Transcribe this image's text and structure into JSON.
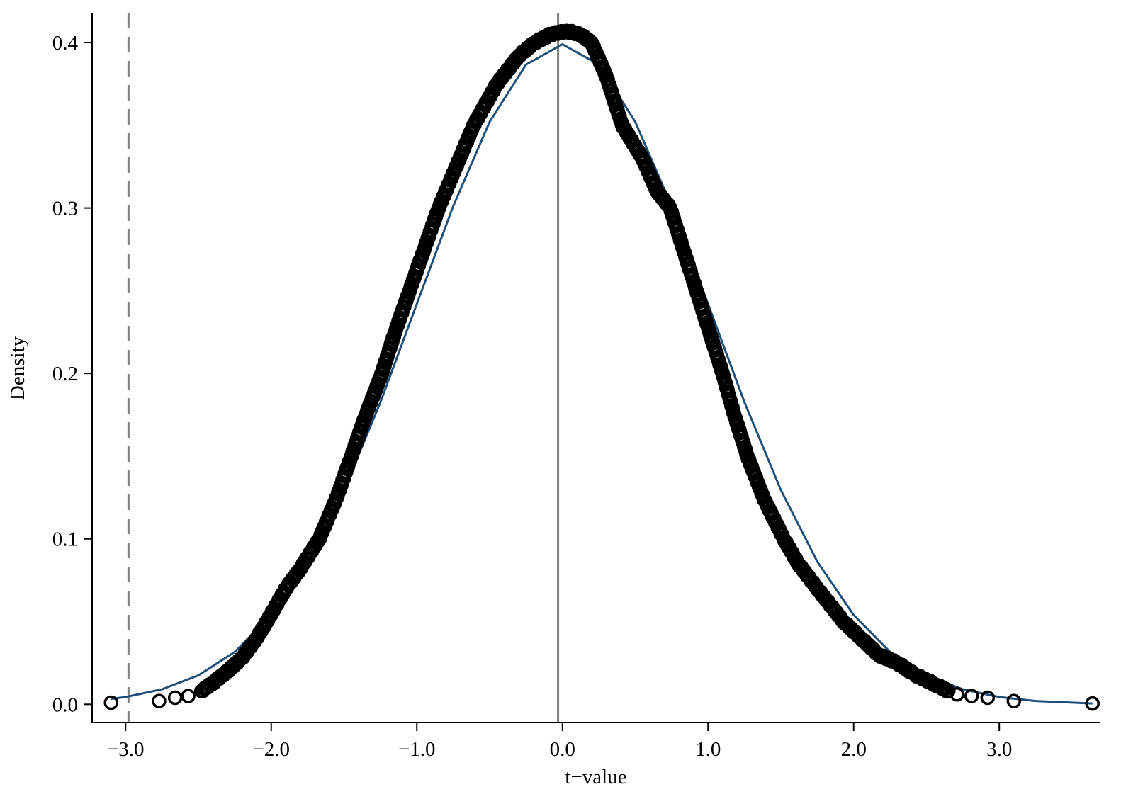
{
  "chart_data": {
    "type": "scatter",
    "title": "",
    "xlabel": "t−value",
    "ylabel": "Density",
    "xlim": [
      -3.23,
      3.69
    ],
    "ylim": [
      -0.011,
      0.418
    ],
    "x_ticks": [
      {
        "value": -3,
        "label": "−3.0"
      },
      {
        "value": -2,
        "label": "−2.0"
      },
      {
        "value": -1,
        "label": "−1.0"
      },
      {
        "value": 0,
        "label": "0.0"
      },
      {
        "value": 1,
        "label": "1.0"
      },
      {
        "value": 2,
        "label": "2.0"
      },
      {
        "value": 3,
        "label": "3.0"
      }
    ],
    "y_ticks": [
      {
        "value": 0.0,
        "label": "0.0"
      },
      {
        "value": 0.1,
        "label": "0.1"
      },
      {
        "value": 0.2,
        "label": "0.2"
      },
      {
        "value": 0.3,
        "label": "0.3"
      },
      {
        "value": 0.4,
        "label": "0.4"
      }
    ],
    "grid": false,
    "vlines": [
      {
        "x": -2.98,
        "style": "dashed",
        "color": "#808080"
      },
      {
        "x": -0.03,
        "style": "solid",
        "color": "#808080"
      }
    ],
    "points_color": "#000000",
    "points": [
      [
        -3.1,
        0.001
      ],
      [
        -2.77,
        0.002
      ],
      [
        -2.66,
        0.004
      ],
      [
        -2.57,
        0.005
      ],
      [
        -2.48,
        0.008
      ],
      [
        -2.4,
        0.013
      ],
      [
        -2.3,
        0.02
      ],
      [
        -2.2,
        0.028
      ],
      [
        -2.1,
        0.04
      ],
      [
        -2.03,
        0.05
      ],
      [
        -1.9,
        0.07
      ],
      [
        -1.8,
        0.082
      ],
      [
        -1.67,
        0.1
      ],
      [
        -1.55,
        0.125
      ],
      [
        -1.45,
        0.15
      ],
      [
        -1.35,
        0.175
      ],
      [
        -1.24,
        0.2
      ],
      [
        -1.15,
        0.225
      ],
      [
        -1.05,
        0.25
      ],
      [
        -0.95,
        0.275
      ],
      [
        -0.85,
        0.3
      ],
      [
        -0.73,
        0.325
      ],
      [
        -0.61,
        0.35
      ],
      [
        -0.45,
        0.375
      ],
      [
        -0.3,
        0.392
      ],
      [
        -0.19,
        0.4
      ],
      [
        -0.08,
        0.405
      ],
      [
        0.03,
        0.407
      ],
      [
        0.12,
        0.405
      ],
      [
        0.2,
        0.4
      ],
      [
        0.3,
        0.38
      ],
      [
        0.41,
        0.35
      ],
      [
        0.55,
        0.33
      ],
      [
        0.65,
        0.31
      ],
      [
        0.74,
        0.3
      ],
      [
        0.83,
        0.275
      ],
      [
        0.92,
        0.25
      ],
      [
        1.01,
        0.225
      ],
      [
        1.1,
        0.2
      ],
      [
        1.18,
        0.175
      ],
      [
        1.27,
        0.15
      ],
      [
        1.38,
        0.125
      ],
      [
        1.52,
        0.1
      ],
      [
        1.62,
        0.085
      ],
      [
        1.75,
        0.07
      ],
      [
        1.93,
        0.05
      ],
      [
        2.05,
        0.04
      ],
      [
        2.17,
        0.03
      ],
      [
        2.3,
        0.025
      ],
      [
        2.42,
        0.018
      ],
      [
        2.56,
        0.012
      ],
      [
        2.65,
        0.008
      ],
      [
        2.71,
        0.006
      ],
      [
        2.81,
        0.005
      ],
      [
        2.92,
        0.004
      ],
      [
        3.1,
        0.002
      ],
      [
        3.64,
        0.0005
      ]
    ],
    "reference_curve_color": "#1f4e79",
    "reference_curve": [
      [
        -3.1,
        0.0033
      ],
      [
        -3.0,
        0.0044
      ],
      [
        -2.75,
        0.0091
      ],
      [
        -2.5,
        0.0175
      ],
      [
        -2.25,
        0.0317
      ],
      [
        -2.0,
        0.054
      ],
      [
        -1.75,
        0.0863
      ],
      [
        -1.5,
        0.1295
      ],
      [
        -1.25,
        0.1826
      ],
      [
        -1.0,
        0.242
      ],
      [
        -0.75,
        0.3011
      ],
      [
        -0.5,
        0.3521
      ],
      [
        -0.25,
        0.3867
      ],
      [
        0.0,
        0.3989
      ],
      [
        0.25,
        0.3867
      ],
      [
        0.5,
        0.3521
      ],
      [
        0.75,
        0.3011
      ],
      [
        1.0,
        0.242
      ],
      [
        1.25,
        0.1826
      ],
      [
        1.5,
        0.1295
      ],
      [
        1.75,
        0.0863
      ],
      [
        2.0,
        0.054
      ],
      [
        2.25,
        0.0317
      ],
      [
        2.5,
        0.0175
      ],
      [
        2.75,
        0.0091
      ],
      [
        3.0,
        0.0044
      ],
      [
        3.25,
        0.002
      ],
      [
        3.64,
        0.0005
      ]
    ]
  }
}
